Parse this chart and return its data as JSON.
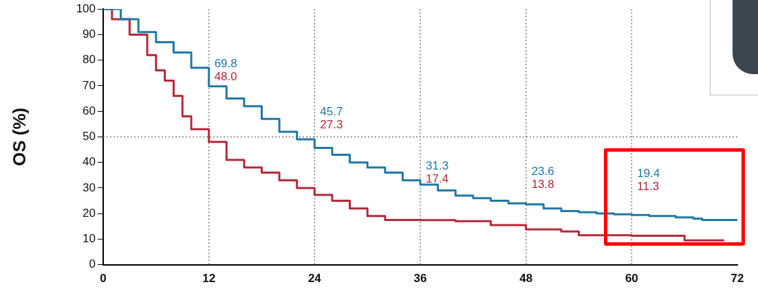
{
  "chart_data": {
    "type": "step",
    "ylabel": "OS (%)",
    "xlim": [
      0,
      72
    ],
    "xticks": [
      0,
      12,
      24,
      36,
      48,
      60,
      72
    ],
    "ylim": [
      0,
      100
    ],
    "yticks": [
      0,
      10,
      20,
      30,
      40,
      50,
      60,
      70,
      80,
      90,
      100
    ],
    "grid": false,
    "legend": false,
    "series": [
      {
        "color": "#1f78a8",
        "x": [
          0,
          2,
          4,
          6,
          8,
          10,
          12,
          14,
          16,
          18,
          20,
          22,
          24,
          26,
          28,
          30,
          32,
          34,
          36,
          38,
          40,
          42,
          44,
          46,
          48,
          50,
          52,
          54,
          56,
          58,
          60,
          62,
          65,
          67,
          68,
          72
        ],
        "values": [
          100,
          96,
          91,
          87,
          83,
          77,
          69.8,
          65,
          62,
          57,
          52,
          49,
          45.7,
          43,
          40,
          38,
          36,
          33,
          31.3,
          29,
          27,
          26,
          25,
          24,
          23.6,
          22,
          21,
          20.5,
          20,
          19.7,
          19.4,
          19,
          18.5,
          18,
          17.5,
          17.5
        ]
      },
      {
        "color": "#b5283a",
        "x": [
          0,
          1,
          3,
          5,
          6,
          7,
          8,
          9,
          10,
          12,
          14,
          16,
          18,
          20,
          22,
          24,
          26,
          28,
          30,
          32,
          36,
          40,
          44,
          48,
          52,
          54,
          60,
          65,
          66,
          70.5
        ],
        "values": [
          100,
          96,
          90,
          82,
          76,
          72,
          66,
          58,
          53,
          48,
          41,
          38,
          36,
          33,
          30,
          27.3,
          25,
          22,
          19,
          17.5,
          17.4,
          17,
          15.5,
          13.8,
          13,
          11.5,
          11.3,
          11.3,
          9.5,
          9.5
        ]
      }
    ],
    "ref_lines": [
      {
        "axis": "x",
        "value": 12,
        "line_style": "dotted"
      },
      {
        "axis": "x",
        "value": 24,
        "line_style": "dotted"
      },
      {
        "axis": "x",
        "value": 36,
        "line_style": "dotted"
      },
      {
        "axis": "x",
        "value": 48,
        "line_style": "dotted"
      },
      {
        "axis": "x",
        "value": 60,
        "line_style": "dotted"
      },
      {
        "axis": "y",
        "value": 50,
        "line_style": "dotted"
      }
    ],
    "annotations": [
      "69.8",
      "48.0",
      "45.7",
      "27.3",
      "31.3",
      "17.4",
      "23.6",
      "13.8",
      "19.4",
      "11.3"
    ]
  }
}
